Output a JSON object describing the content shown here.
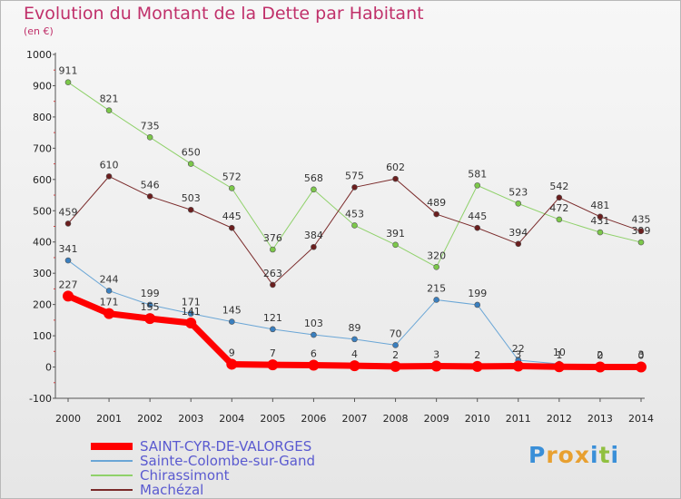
{
  "title": "Evolution du Montant de la Dette par Habitant",
  "unit": "(en €)",
  "brand": {
    "text": "Proxiti",
    "letters": [
      "P",
      "r",
      "o",
      "x",
      "i",
      "t",
      "i"
    ],
    "colors": [
      "#3a8fd8",
      "#e8a030",
      "#e8a030",
      "#e8a030",
      "#3a8fd8",
      "#90c040",
      "#3a8fd8"
    ]
  },
  "chart_data": {
    "type": "line",
    "x": [
      "2000",
      "2001",
      "2002",
      "2003",
      "2004",
      "2005",
      "2006",
      "2007",
      "2008",
      "2009",
      "2010",
      "2011",
      "2012",
      "2013",
      "2014"
    ],
    "ylim": [
      -100,
      1000
    ],
    "yticks": [
      "-100",
      "0",
      "100",
      "200",
      "300",
      "400",
      "500",
      "600",
      "700",
      "800",
      "900",
      "1000"
    ],
    "grid": false,
    "legend_position": "bottom-left",
    "series": [
      {
        "name": "Chirassimont",
        "color": "#8fd16a",
        "marker": "#7cc84a",
        "width": 1,
        "values": [
          911,
          821,
          735,
          650,
          572,
          376,
          568,
          453,
          391,
          320,
          581,
          523,
          472,
          431,
          399
        ],
        "labels": [
          "911",
          "821",
          "735",
          "650",
          "572",
          "376",
          "568",
          "453",
          "391",
          "320",
          "581",
          "523",
          "472",
          "431",
          "399"
        ]
      },
      {
        "name": "Machézal",
        "color": "#7a2a2a",
        "marker": "#6b1e1e",
        "width": 1,
        "values": [
          459,
          610,
          546,
          503,
          445,
          263,
          384,
          575,
          602,
          489,
          445,
          394,
          542,
          481,
          435
        ],
        "labels": [
          "459",
          "610",
          "546",
          "503",
          "445",
          "263",
          "384",
          "575",
          "602",
          "489",
          "445",
          "394",
          "542",
          "481",
          "435"
        ]
      },
      {
        "name": "Sainte-Colombe-sur-Gand",
        "color": "#6aa6d6",
        "marker": "#3a7fbf",
        "width": 1,
        "values": [
          341,
          244,
          199,
          171,
          145,
          121,
          103,
          89,
          70,
          215,
          199,
          22,
          10,
          2,
          3
        ],
        "labels": [
          "341",
          "244",
          "199",
          "171",
          "145",
          "121",
          "103",
          "89",
          "70",
          "215",
          "199",
          "22",
          "10",
          "2",
          "3"
        ]
      },
      {
        "name": "SAINT-CYR-DE-VALORGES",
        "color": "#ff0000",
        "marker": "#ff0000",
        "width": 7,
        "values": [
          227,
          171,
          155,
          141,
          9,
          7,
          6,
          4,
          2,
          3,
          2,
          3,
          1,
          0,
          0
        ],
        "labels": [
          "227",
          "171",
          "155",
          "141",
          "9",
          "7",
          "6",
          "4",
          "2",
          "3",
          "2",
          "3",
          "1",
          "0",
          "0"
        ]
      }
    ],
    "legend": [
      {
        "name": "SAINT-CYR-DE-VALORGES",
        "color": "#ff0000",
        "thick": 8
      },
      {
        "name": "Sainte-Colombe-sur-Gand",
        "color": "#6aa6d6",
        "thick": 2
      },
      {
        "name": "Chirassimont",
        "color": "#8fd16a",
        "thick": 2
      },
      {
        "name": "Machézal",
        "color": "#7a2a2a",
        "thick": 2
      }
    ]
  }
}
